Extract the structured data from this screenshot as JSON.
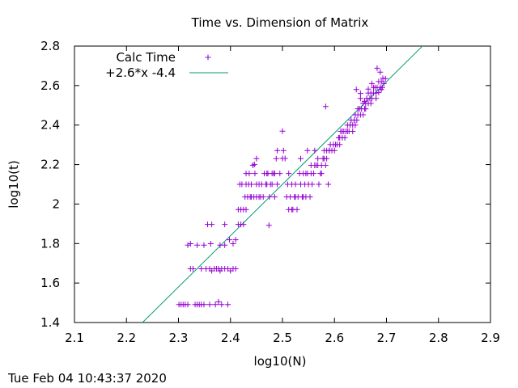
{
  "footer": {
    "timestamp": "Tue Feb 04 10:43:37 2020"
  },
  "colors": {
    "points": "#9400d3",
    "fit": "#009e73",
    "axis": "#000000"
  },
  "chart_data": {
    "type": "scatter",
    "title": "Time vs. Dimension of Matrix",
    "xlabel": "log10(N)",
    "ylabel": "log10(t)",
    "xlim": [
      2.1,
      2.9
    ],
    "ylim": [
      1.4,
      2.8
    ],
    "xticks": [
      "2.1",
      "2.2",
      "2.3",
      "2.4",
      "2.5",
      "2.6",
      "2.7",
      "2.8",
      "2.9"
    ],
    "yticks": [
      "1.4",
      "1.6",
      "1.8",
      "2",
      "2.2",
      "2.4",
      "2.6",
      "2.8"
    ],
    "grid": false,
    "legend_position": "top-left",
    "series": [
      {
        "name": "Calc Time",
        "kind": "points",
        "points": [
          [
            2.301,
            1.491
          ],
          [
            2.305,
            1.491
          ],
          [
            2.309,
            1.491
          ],
          [
            2.313,
            1.491
          ],
          [
            2.318,
            1.491
          ],
          [
            2.332,
            1.491
          ],
          [
            2.336,
            1.491
          ],
          [
            2.34,
            1.491
          ],
          [
            2.344,
            1.491
          ],
          [
            2.349,
            1.491
          ],
          [
            2.36,
            1.491
          ],
          [
            2.371,
            1.491
          ],
          [
            2.377,
            1.505
          ],
          [
            2.383,
            1.491
          ],
          [
            2.395,
            1.491
          ],
          [
            2.318,
            1.792
          ],
          [
            2.323,
            1.799
          ],
          [
            2.336,
            1.792
          ],
          [
            2.349,
            1.792
          ],
          [
            2.362,
            1.799
          ],
          [
            2.38,
            1.792
          ],
          [
            2.389,
            1.792
          ],
          [
            2.323,
            1.672
          ],
          [
            2.328,
            1.672
          ],
          [
            2.344,
            1.672
          ],
          [
            2.353,
            1.672
          ],
          [
            2.36,
            1.672
          ],
          [
            2.364,
            1.662
          ],
          [
            2.369,
            1.672
          ],
          [
            2.373,
            1.672
          ],
          [
            2.377,
            1.672
          ],
          [
            2.38,
            1.662
          ],
          [
            2.383,
            1.672
          ],
          [
            2.389,
            1.672
          ],
          [
            2.395,
            1.672
          ],
          [
            2.4,
            1.662
          ],
          [
            2.405,
            1.672
          ],
          [
            2.41,
            1.672
          ],
          [
            2.356,
            1.897
          ],
          [
            2.364,
            1.897
          ],
          [
            2.389,
            1.897
          ],
          [
            2.398,
            1.819
          ],
          [
            2.405,
            1.799
          ],
          [
            2.41,
            1.819
          ],
          [
            2.415,
            1.897
          ],
          [
            2.42,
            1.897
          ],
          [
            2.425,
            1.897
          ],
          [
            2.474,
            1.892
          ],
          [
            2.415,
            1.972
          ],
          [
            2.42,
            1.972
          ],
          [
            2.425,
            1.972
          ],
          [
            2.43,
            1.972
          ],
          [
            2.418,
            2.1
          ],
          [
            2.422,
            2.1
          ],
          [
            2.428,
            2.036
          ],
          [
            2.433,
            2.036
          ],
          [
            2.438,
            2.036
          ],
          [
            2.44,
            2.1
          ],
          [
            2.443,
            2.196
          ],
          [
            2.447,
            2.155
          ],
          [
            2.45,
            2.036
          ],
          [
            2.455,
            2.1
          ],
          [
            2.458,
            2.036
          ],
          [
            2.463,
            2.036
          ],
          [
            2.468,
            2.1
          ],
          [
            2.472,
            2.155
          ],
          [
            2.477,
            2.1
          ],
          [
            2.48,
            2.155
          ],
          [
            2.485,
            2.036
          ],
          [
            2.49,
            2.1
          ],
          [
            2.495,
            2.155
          ],
          [
            2.5,
            2.231
          ],
          [
            2.5,
            2.369
          ],
          [
            2.43,
            2.1
          ],
          [
            2.435,
            2.1
          ],
          [
            2.44,
            2.036
          ],
          [
            2.445,
            2.036
          ],
          [
            2.45,
            2.1
          ],
          [
            2.455,
            2.036
          ],
          [
            2.46,
            2.1
          ],
          [
            2.465,
            2.155
          ],
          [
            2.47,
            2.1
          ],
          [
            2.475,
            2.036
          ],
          [
            2.48,
            2.1
          ],
          [
            2.485,
            2.155
          ],
          [
            2.488,
            2.23
          ],
          [
            2.49,
            2.271
          ],
          [
            2.43,
            2.155
          ],
          [
            2.436,
            2.155
          ],
          [
            2.446,
            2.201
          ],
          [
            2.45,
            2.23
          ],
          [
            2.47,
            2.155
          ],
          [
            2.483,
            2.155
          ],
          [
            2.502,
            2.271
          ],
          [
            2.505,
            2.231
          ],
          [
            2.508,
            2.036
          ],
          [
            2.51,
            2.1
          ],
          [
            2.512,
            2.155
          ],
          [
            2.515,
            2.036
          ],
          [
            2.518,
            2.1
          ],
          [
            2.52,
            1.972
          ],
          [
            2.523,
            2.036
          ],
          [
            2.525,
            2.1
          ],
          [
            2.528,
            1.972
          ],
          [
            2.53,
            2.036
          ],
          [
            2.533,
            2.155
          ],
          [
            2.535,
            2.1
          ],
          [
            2.538,
            2.036
          ],
          [
            2.54,
            2.155
          ],
          [
            2.543,
            2.1
          ],
          [
            2.545,
            2.036
          ],
          [
            2.548,
            2.155
          ],
          [
            2.55,
            2.1
          ],
          [
            2.553,
            2.036
          ],
          [
            2.555,
            2.155
          ],
          [
            2.557,
            2.1
          ],
          [
            2.56,
            2.155
          ],
          [
            2.562,
            2.271
          ],
          [
            2.565,
            2.196
          ],
          [
            2.568,
            2.23
          ],
          [
            2.57,
            2.1
          ],
          [
            2.573,
            2.155
          ],
          [
            2.575,
            2.196
          ],
          [
            2.578,
            2.23
          ],
          [
            2.58,
            2.271
          ],
          [
            2.583,
            2.196
          ],
          [
            2.585,
            2.271
          ],
          [
            2.588,
            2.1
          ],
          [
            2.59,
            2.271
          ],
          [
            2.512,
            1.972
          ],
          [
            2.518,
            1.972
          ],
          [
            2.525,
            2.036
          ],
          [
            2.535,
            2.23
          ],
          [
            2.54,
            2.036
          ],
          [
            2.545,
            2.155
          ],
          [
            2.548,
            2.271
          ],
          [
            2.555,
            2.196
          ],
          [
            2.562,
            2.196
          ],
          [
            2.568,
            2.196
          ],
          [
            2.575,
            2.155
          ],
          [
            2.58,
            2.23
          ],
          [
            2.585,
            2.23
          ],
          [
            2.583,
            2.494
          ],
          [
            2.59,
            2.271
          ],
          [
            2.592,
            2.301
          ],
          [
            2.595,
            2.271
          ],
          [
            2.598,
            2.301
          ],
          [
            2.6,
            2.271
          ],
          [
            2.602,
            2.301
          ],
          [
            2.605,
            2.301
          ],
          [
            2.608,
            2.336
          ],
          [
            2.61,
            2.336
          ],
          [
            2.612,
            2.368
          ],
          [
            2.615,
            2.336
          ],
          [
            2.618,
            2.368
          ],
          [
            2.62,
            2.336
          ],
          [
            2.622,
            2.368
          ],
          [
            2.625,
            2.4
          ],
          [
            2.628,
            2.368
          ],
          [
            2.63,
            2.4
          ],
          [
            2.632,
            2.425
          ],
          [
            2.635,
            2.4
          ],
          [
            2.638,
            2.425
          ],
          [
            2.64,
            2.452
          ],
          [
            2.643,
            2.425
          ],
          [
            2.645,
            2.452
          ],
          [
            2.648,
            2.482
          ],
          [
            2.65,
            2.452
          ],
          [
            2.652,
            2.482
          ],
          [
            2.655,
            2.51
          ],
          [
            2.658,
            2.482
          ],
          [
            2.66,
            2.51
          ],
          [
            2.662,
            2.535
          ],
          [
            2.665,
            2.51
          ],
          [
            2.668,
            2.535
          ],
          [
            2.67,
            2.562
          ],
          [
            2.672,
            2.535
          ],
          [
            2.675,
            2.562
          ],
          [
            2.678,
            2.59
          ],
          [
            2.68,
            2.562
          ],
          [
            2.682,
            2.59
          ],
          [
            2.685,
            2.62
          ],
          [
            2.688,
            2.59
          ],
          [
            2.69,
            2.62
          ],
          [
            2.693,
            2.637
          ],
          [
            2.695,
            2.61
          ],
          [
            2.698,
            2.635
          ],
          [
            2.61,
            2.301
          ],
          [
            2.615,
            2.368
          ],
          [
            2.625,
            2.368
          ],
          [
            2.635,
            2.368
          ],
          [
            2.64,
            2.4
          ],
          [
            2.645,
            2.482
          ],
          [
            2.65,
            2.535
          ],
          [
            2.655,
            2.452
          ],
          [
            2.66,
            2.482
          ],
          [
            2.665,
            2.562
          ],
          [
            2.67,
            2.51
          ],
          [
            2.675,
            2.59
          ],
          [
            2.68,
            2.535
          ],
          [
            2.682,
            2.688
          ],
          [
            2.688,
            2.668
          ],
          [
            2.692,
            2.59
          ],
          [
            2.642,
            2.58
          ],
          [
            2.65,
            2.56
          ],
          [
            2.658,
            2.52
          ],
          [
            2.665,
            2.582
          ],
          [
            2.672,
            2.61
          ],
          [
            2.685,
            2.565
          ],
          [
            2.69,
            2.58
          ]
        ]
      },
      {
        "name": "+2.6*x -4.4",
        "kind": "line",
        "slope": 2.6,
        "intercept": -4.4
      }
    ]
  }
}
